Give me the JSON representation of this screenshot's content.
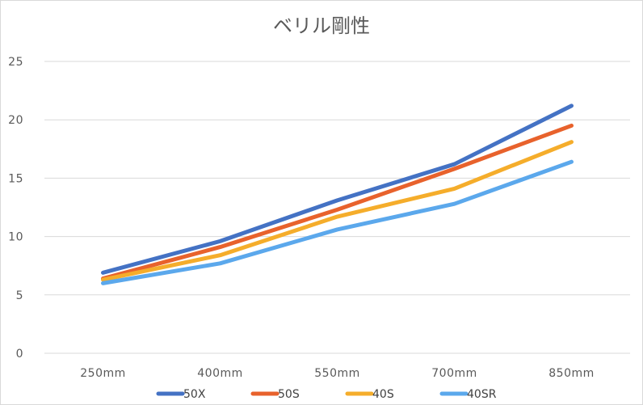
{
  "chart_data": {
    "type": "line",
    "title": "ベリル剛性",
    "xlabel": "",
    "ylabel": "",
    "categories": [
      "250mm",
      "400mm",
      "550mm",
      "700mm",
      "850mm"
    ],
    "ylim": [
      0,
      25
    ],
    "yticks": [
      "0",
      "5",
      "10",
      "15",
      "20",
      "25"
    ],
    "grid": true,
    "legend_position": "bottom",
    "series": [
      {
        "name": "50X",
        "color": "#4472c4",
        "values": [
          6.9,
          9.6,
          13.1,
          16.2,
          21.2
        ]
      },
      {
        "name": "50S",
        "color": "#e8622c",
        "values": [
          6.4,
          9.1,
          12.3,
          15.8,
          19.5
        ]
      },
      {
        "name": "40S",
        "color": "#f5ad2b",
        "values": [
          6.3,
          8.4,
          11.7,
          14.1,
          18.1
        ]
      },
      {
        "name": "40SR",
        "color": "#5ba8ec",
        "values": [
          6.0,
          7.7,
          10.6,
          12.8,
          16.4
        ]
      }
    ]
  }
}
